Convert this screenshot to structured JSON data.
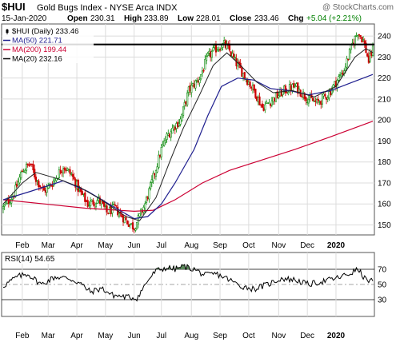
{
  "header": {
    "symbol": "$HUI",
    "name": "Gold Bugs Index - NYSE Arca INDX",
    "copyright": "@ StockCharts.com",
    "date": "15-Jan-2020",
    "open_label": "Open",
    "open": "230.31",
    "high_label": "High",
    "high": "233.89",
    "low_label": "Low",
    "low": "228.01",
    "close_label": "Close",
    "close": "233.46",
    "chg_label": "Chg",
    "chg": "+5.04 (+2.21%)",
    "chg_color": "#008000"
  },
  "legend": [
    {
      "text": "$HUI (Daily) 233.46",
      "color": "#000000",
      "marker": "candle"
    },
    {
      "text": "MA(50) 221.71",
      "color": "#1f1f8f",
      "marker": "line"
    },
    {
      "text": "MA(200) 199.44",
      "color": "#cc0033",
      "marker": "line"
    },
    {
      "text": "MA(20) 232.16",
      "color": "#000000",
      "marker": "line"
    }
  ],
  "rsi_label": "RSI(14) 54.65",
  "colors": {
    "up": "#0a8a0a",
    "down": "#cc0000",
    "ma50": "#1f1f8f",
    "ma200": "#cc0033",
    "ma20": "#222222",
    "grid": "#dcdcdc",
    "rsi_fill": "#5a8a5a"
  },
  "chart_data": [
    {
      "type": "candlestick",
      "x_axis": "date",
      "x_ticks": [
        "Feb",
        "Mar",
        "Apr",
        "May",
        "Jun",
        "Jul",
        "Aug",
        "Sep",
        "Oct",
        "Nov",
        "Dec",
        "2020"
      ],
      "y_ticks": [
        150,
        160,
        170,
        180,
        190,
        200,
        210,
        220,
        230,
        240
      ],
      "ylim": [
        146,
        245
      ],
      "reference_line": 236,
      "price_path": [
        [
          0,
          158
        ],
        [
          8,
          165
        ],
        [
          14,
          176
        ],
        [
          20,
          179
        ],
        [
          24,
          172
        ],
        [
          30,
          166
        ],
        [
          36,
          170
        ],
        [
          44,
          178
        ],
        [
          50,
          174
        ],
        [
          56,
          166
        ],
        [
          62,
          160
        ],
        [
          70,
          162
        ],
        [
          76,
          156
        ],
        [
          82,
          158
        ],
        [
          90,
          152
        ],
        [
          96,
          149
        ],
        [
          100,
          154
        ],
        [
          104,
          160
        ],
        [
          108,
          168
        ],
        [
          112,
          177
        ],
        [
          116,
          186
        ],
        [
          120,
          192
        ],
        [
          124,
          196
        ],
        [
          130,
          200
        ],
        [
          136,
          214
        ],
        [
          144,
          220
        ],
        [
          150,
          230
        ],
        [
          156,
          234
        ],
        [
          162,
          236
        ],
        [
          166,
          233
        ],
        [
          170,
          228
        ],
        [
          176,
          222
        ],
        [
          184,
          214
        ],
        [
          190,
          206
        ],
        [
          198,
          210
        ],
        [
          206,
          214
        ],
        [
          214,
          216
        ],
        [
          222,
          211
        ],
        [
          230,
          208
        ],
        [
          238,
          212
        ],
        [
          244,
          218
        ],
        [
          250,
          224
        ],
        [
          256,
          236
        ],
        [
          260,
          242
        ],
        [
          264,
          238
        ],
        [
          268,
          228
        ],
        [
          271,
          233.46
        ]
      ],
      "ma50_path": [
        [
          0,
          162
        ],
        [
          20,
          166
        ],
        [
          44,
          171
        ],
        [
          62,
          166
        ],
        [
          80,
          159
        ],
        [
          96,
          153
        ],
        [
          106,
          154
        ],
        [
          116,
          160
        ],
        [
          126,
          170
        ],
        [
          140,
          186
        ],
        [
          150,
          202
        ],
        [
          160,
          216
        ],
        [
          172,
          220
        ],
        [
          184,
          219
        ],
        [
          196,
          215
        ],
        [
          210,
          214
        ],
        [
          224,
          212
        ],
        [
          240,
          214
        ],
        [
          256,
          218
        ],
        [
          271,
          221.71
        ]
      ],
      "ma200_path": [
        [
          0,
          162
        ],
        [
          30,
          160
        ],
        [
          60,
          158
        ],
        [
          96,
          156.5
        ],
        [
          110,
          157
        ],
        [
          126,
          162
        ],
        [
          146,
          170
        ],
        [
          166,
          176
        ],
        [
          190,
          181
        ],
        [
          214,
          186
        ],
        [
          240,
          192
        ],
        [
          271,
          199.44
        ]
      ],
      "ma20_path": [
        [
          0,
          160
        ],
        [
          14,
          170
        ],
        [
          24,
          175
        ],
        [
          40,
          172
        ],
        [
          56,
          168
        ],
        [
          72,
          162
        ],
        [
          90,
          154
        ],
        [
          100,
          152
        ],
        [
          112,
          163
        ],
        [
          122,
          180
        ],
        [
          132,
          196
        ],
        [
          144,
          212
        ],
        [
          154,
          226
        ],
        [
          164,
          232
        ],
        [
          174,
          226
        ],
        [
          186,
          218
        ],
        [
          198,
          213
        ],
        [
          212,
          214
        ],
        [
          228,
          211
        ],
        [
          244,
          216
        ],
        [
          258,
          230
        ],
        [
          266,
          234
        ],
        [
          271,
          232.16
        ]
      ]
    },
    {
      "type": "line",
      "name": "RSI(14)",
      "y_ticks": [
        30,
        50,
        70
      ],
      "ylim": [
        10,
        90
      ],
      "reference_lines": [
        30,
        50,
        70
      ],
      "rsi_path": [
        [
          0,
          48
        ],
        [
          10,
          60
        ],
        [
          18,
          64
        ],
        [
          28,
          50
        ],
        [
          38,
          60
        ],
        [
          48,
          58
        ],
        [
          56,
          52
        ],
        [
          64,
          40
        ],
        [
          72,
          45
        ],
        [
          80,
          36
        ],
        [
          88,
          34
        ],
        [
          98,
          32
        ],
        [
          106,
          55
        ],
        [
          112,
          68
        ],
        [
          120,
          72
        ],
        [
          126,
          70
        ],
        [
          132,
          74
        ],
        [
          140,
          70
        ],
        [
          148,
          62
        ],
        [
          156,
          64
        ],
        [
          164,
          58
        ],
        [
          174,
          48
        ],
        [
          184,
          44
        ],
        [
          194,
          50
        ],
        [
          204,
          58
        ],
        [
          214,
          56
        ],
        [
          224,
          50
        ],
        [
          234,
          54
        ],
        [
          244,
          58
        ],
        [
          254,
          64
        ],
        [
          260,
          70
        ],
        [
          266,
          56
        ],
        [
          271,
          54.65
        ]
      ]
    }
  ]
}
